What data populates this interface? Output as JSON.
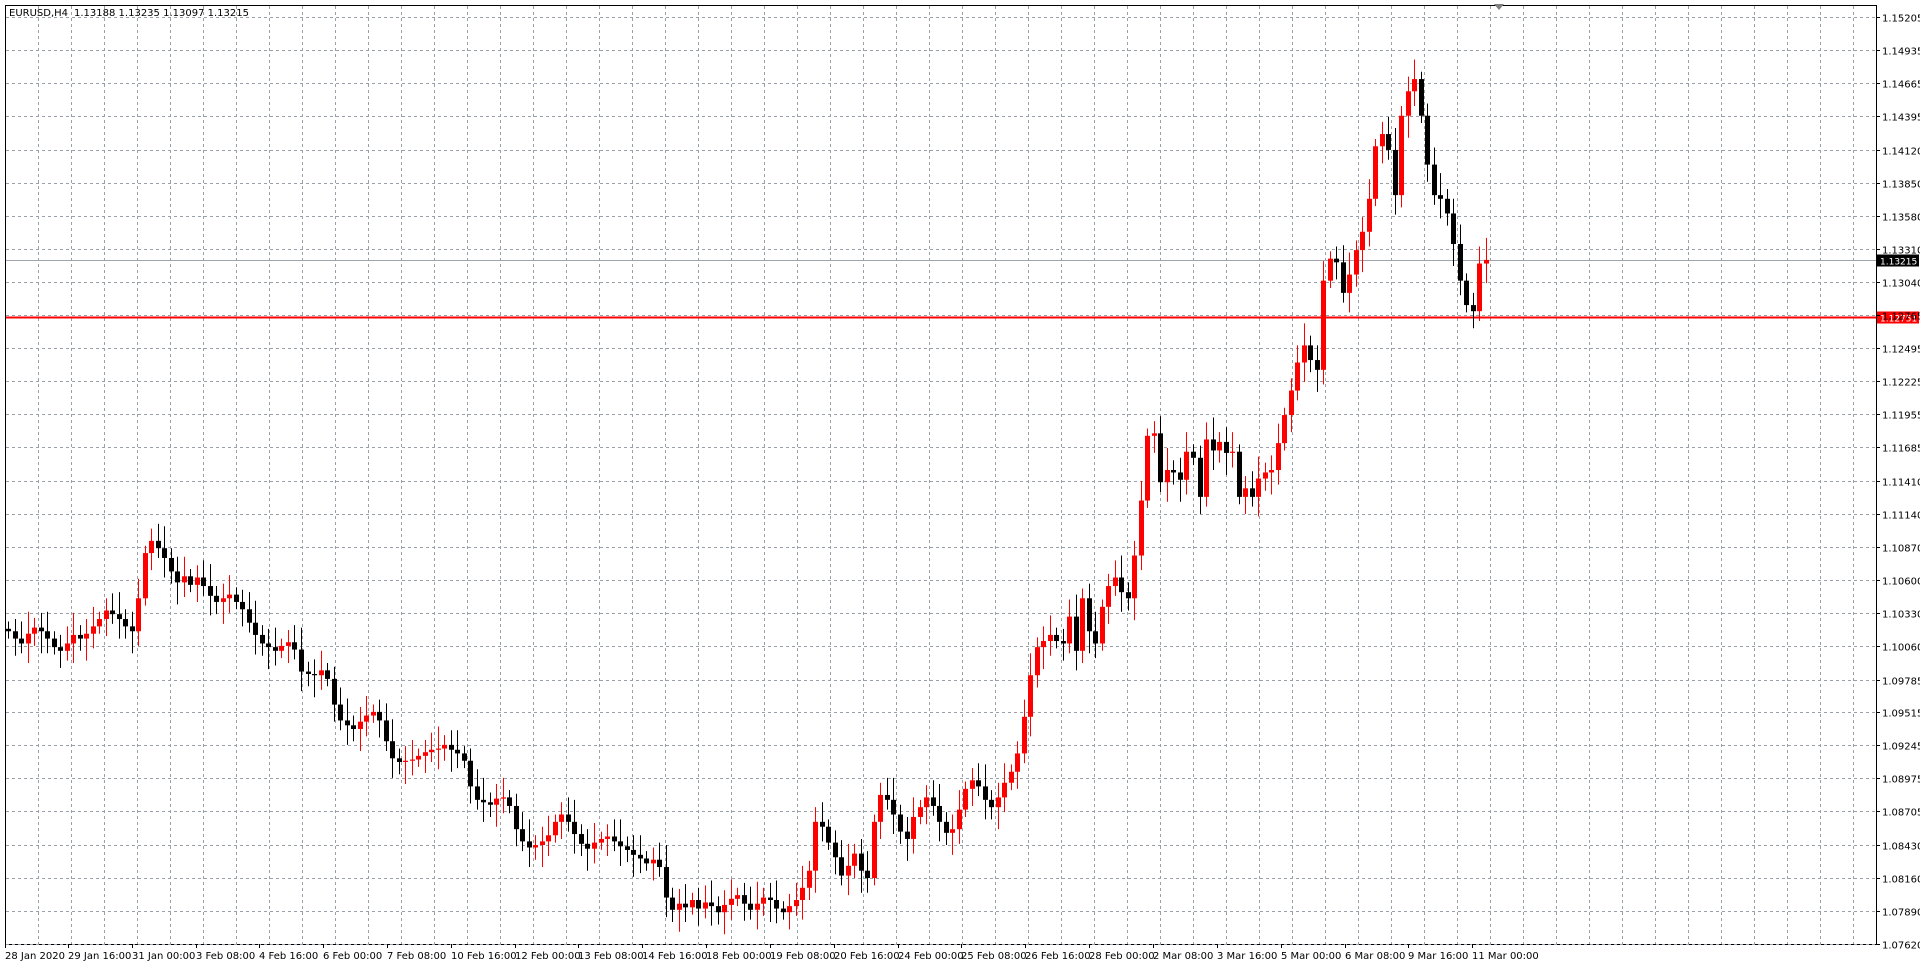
{
  "header": {
    "symbol": "EURUSD,H4",
    "ohlc": "1.13188 1.13235 1.13097 1.13215"
  },
  "colors": {
    "bull": "#ff0000",
    "bear": "#000000",
    "grid": "#9aa0a8",
    "level_line": "#ff0000",
    "price_line": "#a0a4ac"
  },
  "chart_data": {
    "type": "candlestick",
    "title": "EURUSD,H4",
    "xlabel": "",
    "ylabel": "",
    "ylim": [
      1.0762,
      1.152
    ],
    "grid": true,
    "y_ticks": [
      "1.15205",
      "1.14935",
      "1.14665",
      "1.14395",
      "1.14120",
      "1.13850",
      "1.13580",
      "1.13310",
      "1.13040",
      "1.12765",
      "1.12495",
      "1.12225",
      "1.11955",
      "1.11685",
      "1.11410",
      "1.11140",
      "1.10870",
      "1.10600",
      "1.10330",
      "1.10060",
      "1.09785",
      "1.09515",
      "1.09245",
      "1.08975",
      "1.08705",
      "1.08430",
      "1.08160",
      "1.07890",
      "1.07620"
    ],
    "x_labels": [
      "28 Jan 2020",
      "29 Jan 16:00",
      "31 Jan 00:00",
      "3 Feb 08:00",
      "4 Feb 16:00",
      "6 Feb 00:00",
      "7 Feb 08:00",
      "10 Feb 16:00",
      "12 Feb 00:00",
      "13 Feb 08:00",
      "14 Feb 16:00",
      "18 Feb 00:00",
      "19 Feb 08:00",
      "20 Feb 16:00",
      "24 Feb 00:00",
      "25 Feb 08:00",
      "26 Feb 16:00",
      "28 Feb 00:00",
      "2 Mar 08:00",
      "3 Mar 16:00",
      "5 Mar 00:00",
      "6 Mar 08:00",
      "9 Mar 16:00",
      "11 Mar 00:00"
    ],
    "current_price": "1.13215",
    "level_price": "1.12751",
    "closes": [
      1.1018,
      1.1012,
      1.1008,
      1.1016,
      1.1021,
      1.1018,
      1.1012,
      1.1005,
      1.1002,
      1.1008,
      1.1015,
      1.1012,
      1.1016,
      1.1022,
      1.1028,
      1.1035,
      1.1032,
      1.1028,
      1.1022,
      1.1018,
      1.1045,
      1.1082,
      1.1092,
      1.1086,
      1.1078,
      1.1067,
      1.1058,
      1.1063,
      1.1056,
      1.1062,
      1.1055,
      1.1047,
      1.1042,
      1.1045,
      1.1048,
      1.1042,
      1.1036,
      1.1025,
      1.1015,
      1.1008,
      1.1005,
      1.1002,
      1.1006,
      1.1009,
      1.1003,
      1.0985,
      1.0983,
      1.0982,
      1.0986,
      1.0979,
      1.0958,
      1.0945,
      1.0941,
      1.0938,
      1.0944,
      1.0949,
      1.0952,
      1.0945,
      1.0928,
      1.0914,
      1.0911,
      1.0912,
      1.0913,
      1.0916,
      1.0919,
      1.0921,
      1.0922,
      1.0925,
      1.0921,
      1.0918,
      1.0912,
      1.0891,
      1.088,
      1.0878,
      1.0876,
      1.0881,
      1.0882,
      1.0875,
      1.0856,
      1.0846,
      1.0841,
      1.0843,
      1.0846,
      1.0851,
      1.0862,
      1.0868,
      1.0862,
      1.0852,
      1.0844,
      1.084,
      1.0845,
      1.0848,
      1.085,
      1.0846,
      1.0842,
      1.0839,
      1.0835,
      1.0832,
      1.0828,
      1.0831,
      1.0825,
      1.08,
      1.079,
      1.0795,
      1.0792,
      1.0798,
      1.0791,
      1.0796,
      1.0793,
      1.0788,
      1.0794,
      1.0799,
      1.0802,
      1.0795,
      1.079,
      1.0795,
      1.08,
      1.0798,
      1.0791,
      1.0788,
      1.0793,
      1.0798,
      1.0808,
      1.0822,
      1.0862,
      1.0858,
      1.0845,
      1.0833,
      1.0818,
      1.0826,
      1.0836,
      1.0822,
      1.0816,
      1.0862,
      1.0884,
      1.088,
      1.0868,
      1.0854,
      1.0848,
      1.0866,
      1.0874,
      1.0882,
      1.0875,
      1.0862,
      1.0853,
      1.0856,
      1.0872,
      1.0889,
      1.0896,
      1.0891,
      1.088,
      1.0874,
      1.0882,
      1.0894,
      1.0903,
      1.0918,
      1.0948,
      1.0982,
      1.1005,
      1.101,
      1.1015,
      1.101,
      1.1008,
      1.103,
      1.1002,
      1.1045,
      1.1018,
      1.1008,
      1.1038,
      1.1055,
      1.1062,
      1.105,
      1.1045,
      1.108,
      1.1125,
      1.1178,
      1.118,
      1.114,
      1.115,
      1.1148,
      1.1142,
      1.1165,
      1.116,
      1.1128,
      1.1175,
      1.1166,
      1.1173,
      1.1164,
      1.1165,
      1.1128,
      1.1135,
      1.1128,
      1.1143,
      1.1148,
      1.115,
      1.1172,
      1.1195,
      1.1215,
      1.1238,
      1.1252,
      1.124,
      1.1232,
      1.1305,
      1.1323,
      1.132,
      1.1295,
      1.131,
      1.133,
      1.1345,
      1.1372,
      1.1415,
      1.1425,
      1.1412,
      1.1375,
      1.144,
      1.146,
      1.147,
      1.144,
      1.14,
      1.1375,
      1.1372,
      1.136,
      1.1335,
      1.1305,
      1.1285,
      1.128,
      1.1319,
      1.1322
    ],
    "series": [
      {
        "name": "EURUSD,H4",
        "open": 1.102,
        "close": 1.13215
      }
    ]
  }
}
